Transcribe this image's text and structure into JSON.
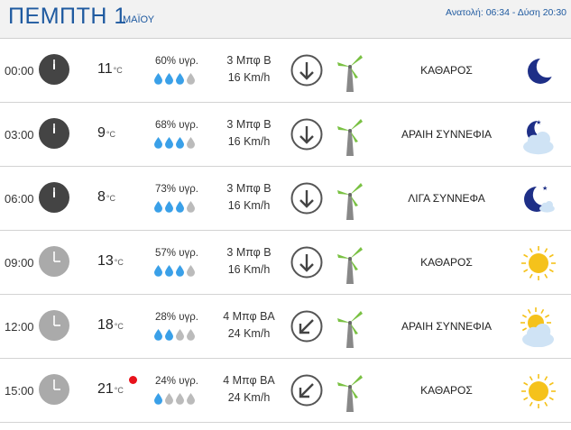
{
  "header": {
    "day": "ΠΕΜΠΤΗ 1",
    "month": "ΜΑΪΟΥ",
    "sun": "Ανατολή: 06:34  - Δύση 20:30"
  },
  "colors": {
    "accent": "#1f5aa0",
    "wind_green": "#7ac143",
    "drop_blue": "#3aa0e8",
    "drop_gray": "#bbbbbb",
    "sun_yellow": "#f5c21b"
  },
  "rows": [
    {
      "time": "00:00",
      "clock": "dark",
      "temp": "11",
      "unit": "°C",
      "humidity": "60% υγρ.",
      "drops_filled": 3,
      "wind_force": "3 Μπφ Β",
      "wind_speed": "16 Km/h",
      "wind_dir": "down",
      "condition": "ΚΑΘΑΡΟΣ",
      "icon": "moon-icon",
      "hot": false
    },
    {
      "time": "03:00",
      "clock": "dark",
      "temp": "9",
      "unit": "°C",
      "humidity": "68% υγρ.",
      "drops_filled": 3,
      "wind_force": "3 Μπφ Β",
      "wind_speed": "16 Km/h",
      "wind_dir": "down",
      "condition": "ΑΡΑΙΗ ΣΥΝΝΕΦΙΑ",
      "icon": "moon-cloud-large-icon",
      "hot": false
    },
    {
      "time": "06:00",
      "clock": "dark",
      "temp": "8",
      "unit": "°C",
      "humidity": "73% υγρ.",
      "drops_filled": 3,
      "wind_force": "3 Μπφ Β",
      "wind_speed": "16 Km/h",
      "wind_dir": "down",
      "condition": "ΛΙΓΑ ΣΥΝΝΕΦΑ",
      "icon": "moon-cloud-small-icon",
      "hot": false
    },
    {
      "time": "09:00",
      "clock": "light",
      "temp": "13",
      "unit": "°C",
      "humidity": "57% υγρ.",
      "drops_filled": 3,
      "wind_force": "3 Μπφ Β",
      "wind_speed": "16 Km/h",
      "wind_dir": "down",
      "condition": "ΚΑΘΑΡΟΣ",
      "icon": "sun-icon",
      "hot": false
    },
    {
      "time": "12:00",
      "clock": "light",
      "temp": "18",
      "unit": "°C",
      "humidity": "28% υγρ.",
      "drops_filled": 2,
      "wind_force": "4 Μπφ ΒΑ",
      "wind_speed": "24 Km/h",
      "wind_dir": "downleft",
      "condition": "ΑΡΑΙΗ ΣΥΝΝΕΦΙΑ",
      "icon": "sun-cloud-icon",
      "hot": false
    },
    {
      "time": "15:00",
      "clock": "light",
      "temp": "21",
      "unit": "°C",
      "humidity": "24% υγρ.",
      "drops_filled": 1,
      "wind_force": "4 Μπφ ΒΑ",
      "wind_speed": "24 Km/h",
      "wind_dir": "downleft",
      "condition": "ΚΑΘΑΡΟΣ",
      "icon": "sun-icon",
      "hot": true
    }
  ]
}
